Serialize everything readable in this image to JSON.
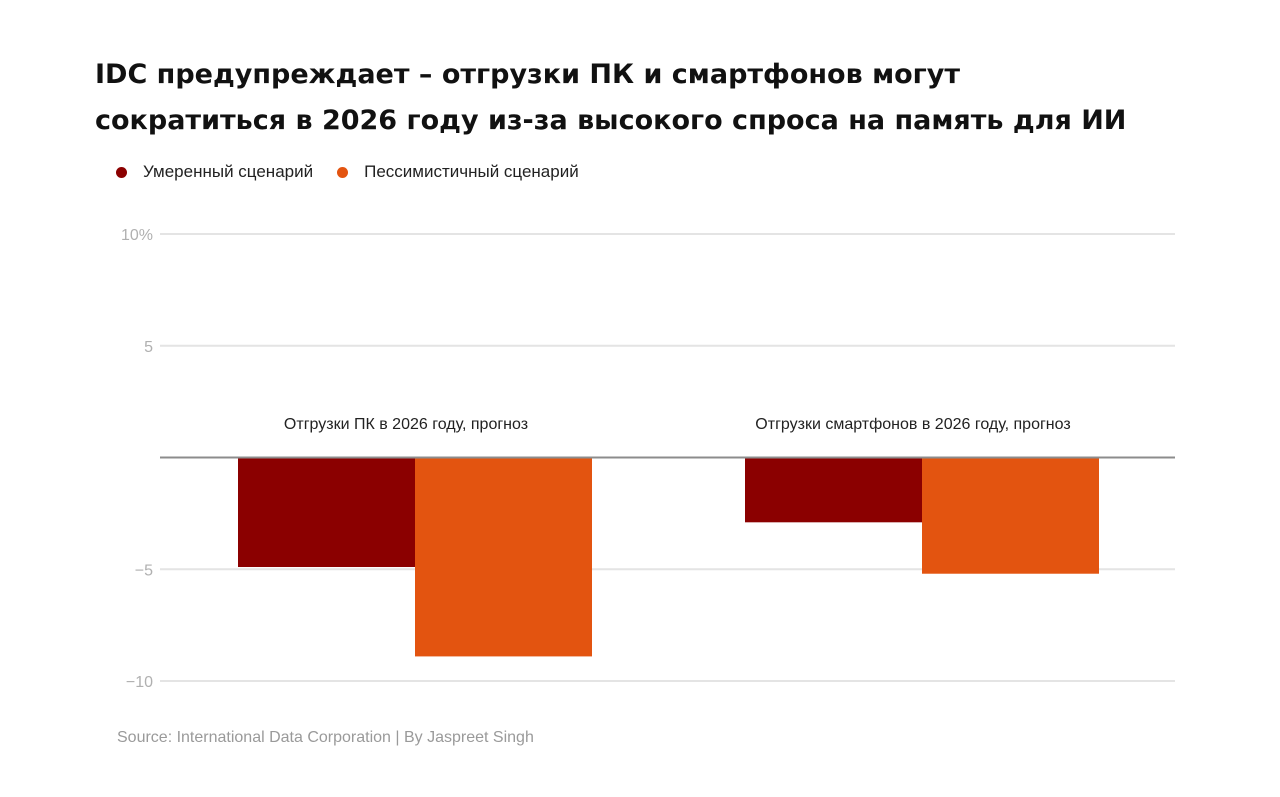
{
  "title": {
    "line1": "IDC предупреждает – отгрузки ПК и смартфонов могут",
    "line2": "сократиться в 2026 году из-за высокого спроса на память для ИИ"
  },
  "source": "Source: International Data Corporation | By Jaspreet Singh",
  "chart_data": {
    "type": "bar",
    "categories": [
      "Отгрузки ПК в 2026 году, прогноз",
      "Отгрузки смартфонов в 2026 году, прогноз"
    ],
    "series": [
      {
        "name": "Умеренный сценарий",
        "color": "#8b0000",
        "values": [
          -4.9,
          -2.9
        ]
      },
      {
        "name": "Пессимистичный сценарий",
        "color": "#e35410",
        "values": [
          -8.9,
          -5.2
        ]
      }
    ],
    "ylim": [
      -10,
      10
    ],
    "y_ticks": [
      {
        "value": 10,
        "label": "10%"
      },
      {
        "value": 5,
        "label": "5"
      },
      {
        "value": -5,
        "label": "−5"
      },
      {
        "value": -10,
        "label": "−10"
      }
    ],
    "grid": true,
    "legend_position": "top-left",
    "xlabel": "",
    "ylabel": ""
  }
}
